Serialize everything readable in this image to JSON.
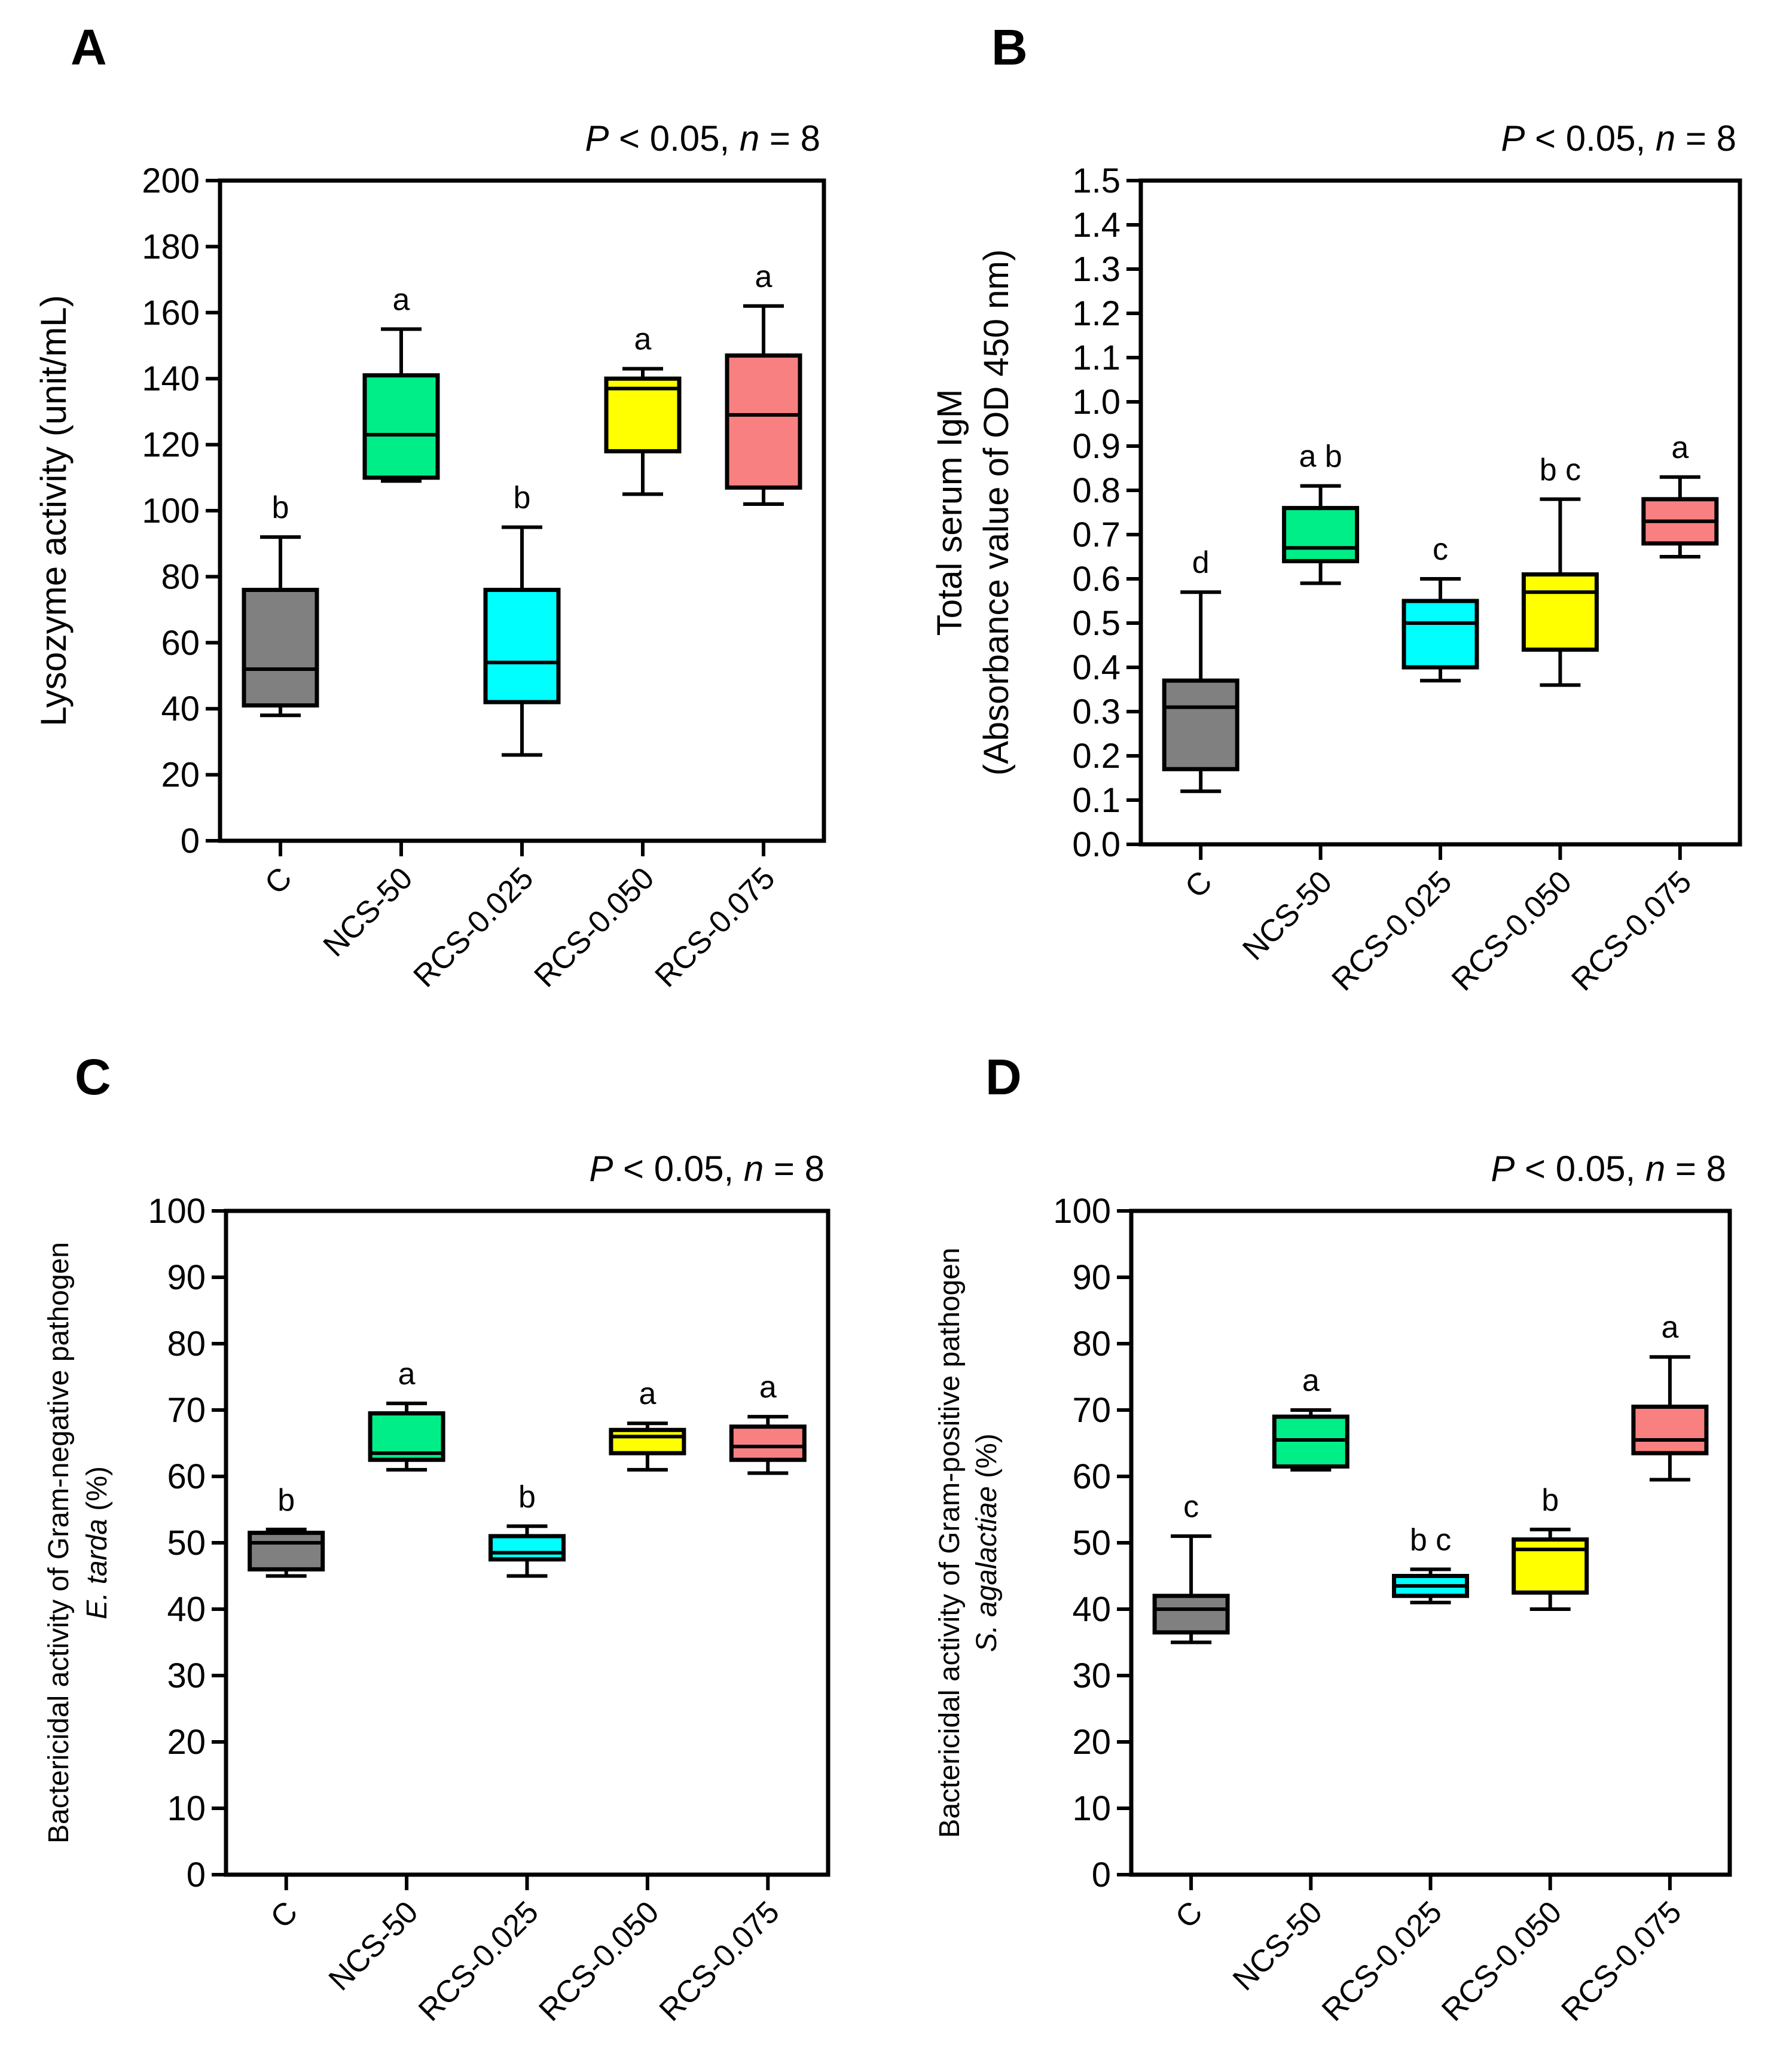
{
  "colors": {
    "C": "#808080",
    "NCS-50": "#00EE88",
    "RCS-0.025": "#00FFFF",
    "RCS-0.050": "#FFFF00",
    "RCS-0.075": "#F88080"
  },
  "chart_data": [
    {
      "panel": "A",
      "type": "box",
      "ylabel_lines": [
        [
          "Lysozyme activity (unit/mL)"
        ]
      ],
      "stat": {
        "p": "P",
        "rest": " < 0.05, ",
        "n": "n",
        "rest2": " = 8"
      },
      "ylim": [
        0,
        200
      ],
      "ytick_step": 20,
      "yticks": [
        "0",
        "20",
        "40",
        "60",
        "80",
        "100",
        "120",
        "140",
        "160",
        "180",
        "200"
      ],
      "categories": [
        "C",
        "NCS-50",
        "RCS-0.025",
        "RCS-0.050",
        "RCS-0.075"
      ],
      "boxes": [
        {
          "min": 38,
          "q1": 41,
          "median": 52,
          "q3": 76,
          "max": 92,
          "letter": "b"
        },
        {
          "min": 109,
          "q1": 110,
          "median": 123,
          "q3": 141,
          "max": 155,
          "letter": "a"
        },
        {
          "min": 26,
          "q1": 42,
          "median": 54,
          "q3": 76,
          "max": 95,
          "letter": "b"
        },
        {
          "min": 105,
          "q1": 118,
          "median": 137,
          "q3": 140,
          "max": 143,
          "letter": "a"
        },
        {
          "min": 102,
          "q1": 107,
          "median": 129,
          "q3": 147,
          "max": 162,
          "letter": "a"
        }
      ]
    },
    {
      "panel": "B",
      "type": "box",
      "ylabel_lines": [
        [
          "Total serum IgM"
        ],
        [
          "(Absorbance value of OD 450 nm)"
        ]
      ],
      "stat": {
        "p": "P",
        "rest": " < 0.05, ",
        "n": "n",
        "rest2": " = 8"
      },
      "ylim": [
        0,
        1.5
      ],
      "ytick_step": 0.1,
      "yticks": [
        "0.0",
        "0.1",
        "0.2",
        "0.3",
        "0.4",
        "0.5",
        "0.6",
        "0.7",
        "0.8",
        "0.9",
        "1.0",
        "1.1",
        "1.2",
        "1.3",
        "1.4",
        "1.5"
      ],
      "categories": [
        "C",
        "NCS-50",
        "RCS-0.025",
        "RCS-0.050",
        "RCS-0.075"
      ],
      "boxes": [
        {
          "min": 0.12,
          "q1": 0.17,
          "median": 0.31,
          "q3": 0.37,
          "max": 0.57,
          "letter": "d"
        },
        {
          "min": 0.59,
          "q1": 0.64,
          "median": 0.67,
          "q3": 0.76,
          "max": 0.81,
          "letter": "a b"
        },
        {
          "min": 0.37,
          "q1": 0.4,
          "median": 0.5,
          "q3": 0.55,
          "max": 0.6,
          "letter": "c"
        },
        {
          "min": 0.36,
          "q1": 0.44,
          "median": 0.57,
          "q3": 0.61,
          "max": 0.78,
          "letter": "b c"
        },
        {
          "min": 0.65,
          "q1": 0.68,
          "median": 0.73,
          "q3": 0.78,
          "max": 0.83,
          "letter": "a"
        }
      ]
    },
    {
      "panel": "C",
      "type": "box",
      "ylabel_lines": [
        [
          "Bactericidal activity of Gram-negative pathogen"
        ],
        [
          "E. tarda",
          "  (%)"
        ]
      ],
      "stat": {
        "p": "P",
        "rest": " < 0.05, ",
        "n": "n",
        "rest2": " = 8"
      },
      "ylim": [
        0,
        100
      ],
      "ytick_step": 10,
      "yticks": [
        "0",
        "10",
        "20",
        "30",
        "40",
        "50",
        "60",
        "70",
        "80",
        "90",
        "100"
      ],
      "categories": [
        "C",
        "NCS-50",
        "RCS-0.025",
        "RCS-0.050",
        "RCS-0.075"
      ],
      "boxes": [
        {
          "min": 45,
          "q1": 46,
          "median": 50,
          "q3": 51.5,
          "max": 52,
          "letter": "b"
        },
        {
          "min": 61,
          "q1": 62.5,
          "median": 63.5,
          "q3": 69.5,
          "max": 71,
          "letter": "a"
        },
        {
          "min": 45,
          "q1": 47.5,
          "median": 48.5,
          "q3": 51,
          "max": 52.5,
          "letter": "b"
        },
        {
          "min": 61,
          "q1": 63.5,
          "median": 66,
          "q3": 67,
          "max": 68,
          "letter": "a"
        },
        {
          "min": 60.5,
          "q1": 62.5,
          "median": 64.5,
          "q3": 67.5,
          "max": 69,
          "letter": "a"
        }
      ]
    },
    {
      "panel": "D",
      "type": "box",
      "ylabel_lines": [
        [
          "Bactericidal activity of Gram-positive pathogen"
        ],
        [
          "S. agalactiae",
          " (%)"
        ]
      ],
      "stat": {
        "p": "P",
        "rest": " < 0.05, ",
        "n": "n",
        "rest2": " = 8"
      },
      "ylim": [
        0,
        100
      ],
      "ytick_step": 10,
      "yticks": [
        "0",
        "10",
        "20",
        "30",
        "40",
        "50",
        "60",
        "70",
        "80",
        "90",
        "100"
      ],
      "categories": [
        "C",
        "NCS-50",
        "RCS-0.025",
        "RCS-0.050",
        "RCS-0.075"
      ],
      "boxes": [
        {
          "min": 35,
          "q1": 36.5,
          "median": 40,
          "q3": 42,
          "max": 51,
          "letter": "c"
        },
        {
          "min": 61,
          "q1": 61.5,
          "median": 65.5,
          "q3": 69,
          "max": 70,
          "letter": "a"
        },
        {
          "min": 41,
          "q1": 42,
          "median": 43.5,
          "q3": 45,
          "max": 46,
          "letter": "b c"
        },
        {
          "min": 40,
          "q1": 42.5,
          "median": 49,
          "q3": 50.5,
          "max": 52,
          "letter": "b"
        },
        {
          "min": 59.5,
          "q1": 63.5,
          "median": 65.5,
          "q3": 70.5,
          "max": 78,
          "letter": "a"
        }
      ]
    }
  ]
}
